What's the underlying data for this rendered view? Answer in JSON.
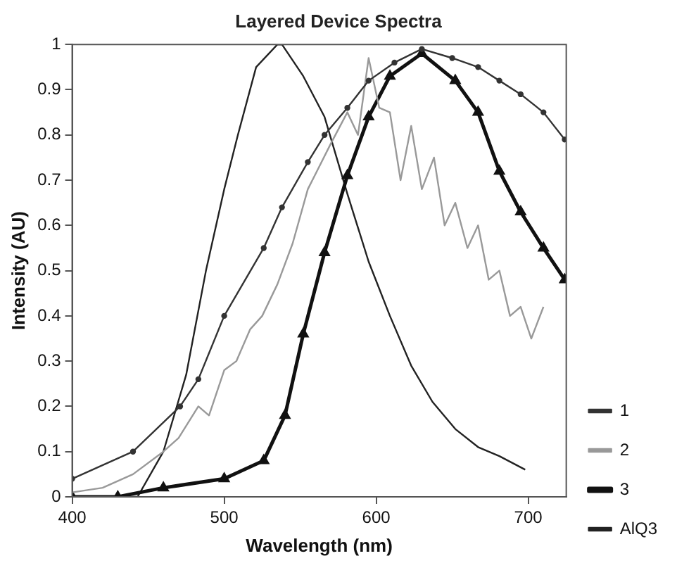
{
  "chart_data": {
    "type": "line",
    "title": "Layered Device Spectra",
    "xlabel": "Wavelength (nm)",
    "ylabel": "Intensity (AU)",
    "xlim": [
      400,
      725
    ],
    "xticks": [
      400,
      500,
      600,
      700
    ],
    "ylim": [
      0,
      1
    ],
    "yticks": [
      0,
      0.1,
      0.2,
      0.3,
      0.4,
      0.5,
      0.6,
      0.7,
      0.8,
      0.9,
      1
    ],
    "grid": false,
    "legend": "bottom right",
    "line_style": "solid",
    "series": [
      {
        "name": "1",
        "color": "#333333",
        "marker": "circle",
        "x": [
          400,
          440,
          471,
          483,
          500,
          526,
          538,
          555,
          566,
          581,
          595,
          612,
          630,
          650,
          667,
          681,
          695,
          710,
          724
        ],
        "values": [
          0.04,
          0.1,
          0.2,
          0.26,
          0.4,
          0.55,
          0.64,
          0.74,
          0.8,
          0.86,
          0.92,
          0.96,
          0.99,
          0.97,
          0.95,
          0.92,
          0.89,
          0.85,
          0.79
        ]
      },
      {
        "name": "2",
        "color": "#999999",
        "marker": "none",
        "x": [
          400,
          420,
          440,
          460,
          470,
          483,
          490,
          500,
          508,
          517,
          525,
          535,
          545,
          555,
          561,
          570,
          581,
          588,
          595,
          602,
          609,
          616,
          623,
          630,
          638,
          645,
          652,
          660,
          667,
          674,
          681,
          688,
          695,
          702,
          710
        ],
        "values": [
          0.01,
          0.02,
          0.05,
          0.1,
          0.13,
          0.2,
          0.18,
          0.28,
          0.3,
          0.37,
          0.4,
          0.47,
          0.56,
          0.68,
          0.72,
          0.78,
          0.85,
          0.8,
          0.97,
          0.86,
          0.85,
          0.7,
          0.82,
          0.68,
          0.75,
          0.6,
          0.65,
          0.55,
          0.6,
          0.48,
          0.5,
          0.4,
          0.42,
          0.35,
          0.42
        ]
      },
      {
        "name": "3",
        "color": "#111111",
        "marker": "triangle",
        "x": [
          400,
          430,
          460,
          500,
          526,
          540,
          552,
          566,
          581,
          595,
          609,
          630,
          652,
          667,
          681,
          695,
          710,
          724
        ],
        "values": [
          0,
          0,
          0.02,
          0.04,
          0.08,
          0.18,
          0.36,
          0.54,
          0.71,
          0.84,
          0.93,
          0.98,
          0.92,
          0.85,
          0.72,
          0.63,
          0.55,
          0.48
        ]
      },
      {
        "name": "AlQ3",
        "color": "#222222",
        "marker": "none",
        "x": [
          400,
          443,
          460,
          475,
          488,
          500,
          509,
          521,
          535,
          538,
          552,
          566,
          581,
          595,
          609,
          623,
          637,
          652,
          667,
          681,
          698
        ],
        "values": [
          0,
          0,
          0.1,
          0.27,
          0.5,
          0.68,
          0.8,
          0.95,
          1,
          1,
          0.93,
          0.84,
          0.67,
          0.52,
          0.4,
          0.29,
          0.21,
          0.15,
          0.11,
          0.09,
          0.06
        ]
      }
    ]
  }
}
